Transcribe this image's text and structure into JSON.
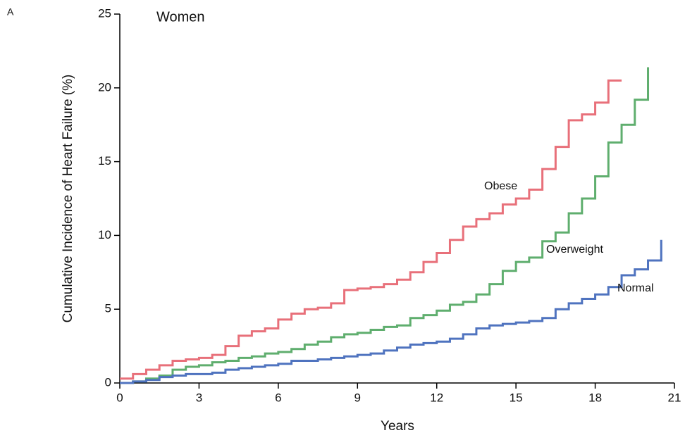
{
  "chart_data": {
    "type": "line",
    "step": "post",
    "panel_label": "A",
    "annotation": "Women",
    "xlabel": "Years",
    "ylabel": "Cumulative Incidence of Heart Failure (%)",
    "x": [
      0,
      0.5,
      1,
      1.5,
      2,
      2.5,
      3,
      3.5,
      4,
      4.5,
      5,
      5.5,
      6,
      6.5,
      7,
      7.5,
      8,
      8.5,
      9,
      9.5,
      10,
      10.5,
      11,
      11.5,
      12,
      12.5,
      13,
      13.5,
      14,
      14.5,
      15,
      15.5,
      16,
      16.5,
      17,
      17.5,
      18,
      18.5,
      19,
      19.5,
      20,
      20.5
    ],
    "series": [
      {
        "name": "Obese",
        "color": "#e8707a",
        "label_pos": "upper",
        "values": [
          0.3,
          0.6,
          0.9,
          1.2,
          1.5,
          1.6,
          1.7,
          1.9,
          2.5,
          3.2,
          3.5,
          3.7,
          4.3,
          4.7,
          5.0,
          5.1,
          5.4,
          6.3,
          6.4,
          6.5,
          6.7,
          7.0,
          7.5,
          8.2,
          8.8,
          9.7,
          10.6,
          11.1,
          11.5,
          12.1,
          12.5,
          13.1,
          14.5,
          16.0,
          17.8,
          18.2,
          19.0,
          20.5,
          20.5,
          null,
          null,
          null
        ]
      },
      {
        "name": "Overweight",
        "color": "#5fae6e",
        "values": [
          0,
          0.1,
          0.3,
          0.5,
          0.9,
          1.1,
          1.2,
          1.4,
          1.5,
          1.7,
          1.8,
          2.0,
          2.1,
          2.3,
          2.6,
          2.8,
          3.1,
          3.3,
          3.4,
          3.6,
          3.8,
          3.9,
          4.4,
          4.6,
          4.9,
          5.3,
          5.5,
          6.0,
          6.7,
          7.6,
          8.2,
          8.5,
          9.6,
          10.2,
          11.5,
          12.5,
          14.0,
          16.3,
          17.5,
          19.2,
          21.4,
          null
        ]
      },
      {
        "name": "Normal",
        "color": "#4f73bf",
        "values": [
          0,
          0.1,
          0.2,
          0.4,
          0.5,
          0.6,
          0.6,
          0.7,
          0.9,
          1.0,
          1.1,
          1.2,
          1.3,
          1.5,
          1.5,
          1.6,
          1.7,
          1.8,
          1.9,
          2.0,
          2.2,
          2.4,
          2.6,
          2.7,
          2.8,
          3.0,
          3.3,
          3.7,
          3.9,
          4.0,
          4.1,
          4.2,
          4.4,
          5.0,
          5.4,
          5.7,
          6.0,
          6.5,
          7.3,
          7.7,
          8.3,
          9.7
        ]
      }
    ],
    "xlim": [
      0,
      21
    ],
    "xticks": [
      0,
      3,
      6,
      9,
      12,
      15,
      18,
      21
    ],
    "ylim": [
      0,
      25
    ],
    "yticks": [
      0,
      5,
      10,
      15,
      20,
      25
    ]
  }
}
